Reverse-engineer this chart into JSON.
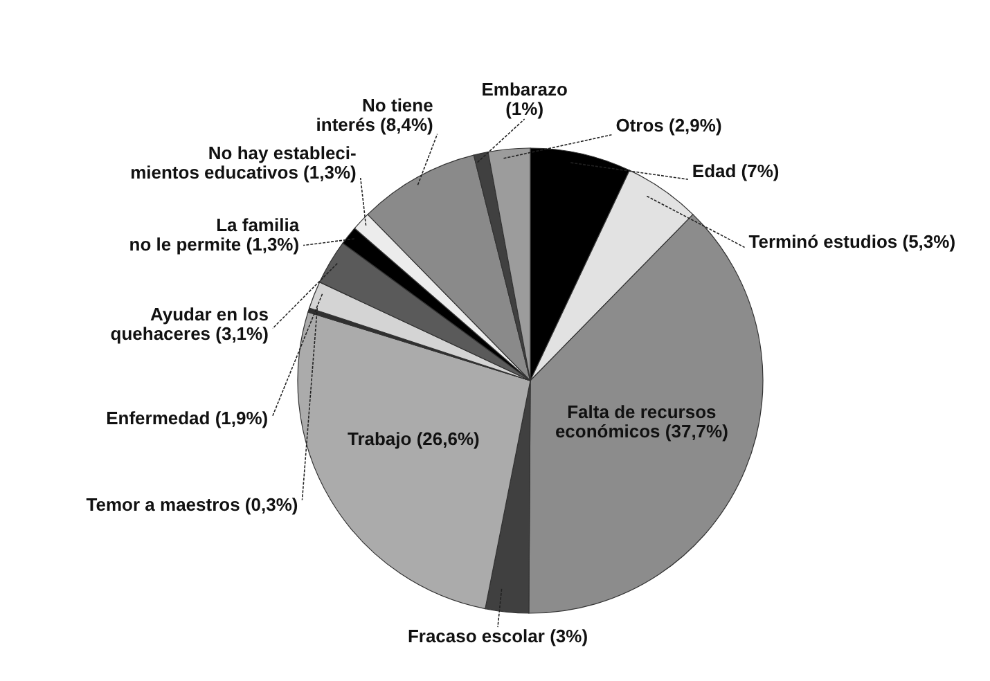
{
  "chart_data": {
    "type": "pie",
    "categories": [
      "Edad",
      "Terminó estudios",
      "Falta de recursos\neconómicos",
      "Fracaso escolar",
      "Trabajo",
      "Temor a maestros",
      "Enfermedad",
      "Ayudar en los\nquehaceres",
      "La familia\nno le permite",
      "No hay estableci-\nmientos educativos",
      "No tiene\ninterés",
      "Embarazo",
      "Otros"
    ],
    "values": [
      7,
      5.3,
      37.7,
      3,
      26.6,
      0.3,
      1.9,
      3.1,
      1.3,
      1.3,
      8.4,
      1,
      2.9
    ],
    "value_labels": [
      "(7%)",
      "(5,3%)",
      "(37,7%)",
      "(3%)",
      "(26,6%)",
      "(0,3%)",
      "(1,9%)",
      "(3,1%)",
      "(1,3%)",
      "(1,3%)",
      "(8,4%)",
      "(1%)",
      "(2,9%)"
    ],
    "colors": [
      "#000000",
      "#e2e2e2",
      "#8c8c8c",
      "#404040",
      "#ababab",
      "#303030",
      "#d4d4d4",
      "#5a5a5a",
      "#000000",
      "#ececec",
      "#8a8a8a",
      "#404040",
      "#9c9c9c"
    ]
  }
}
